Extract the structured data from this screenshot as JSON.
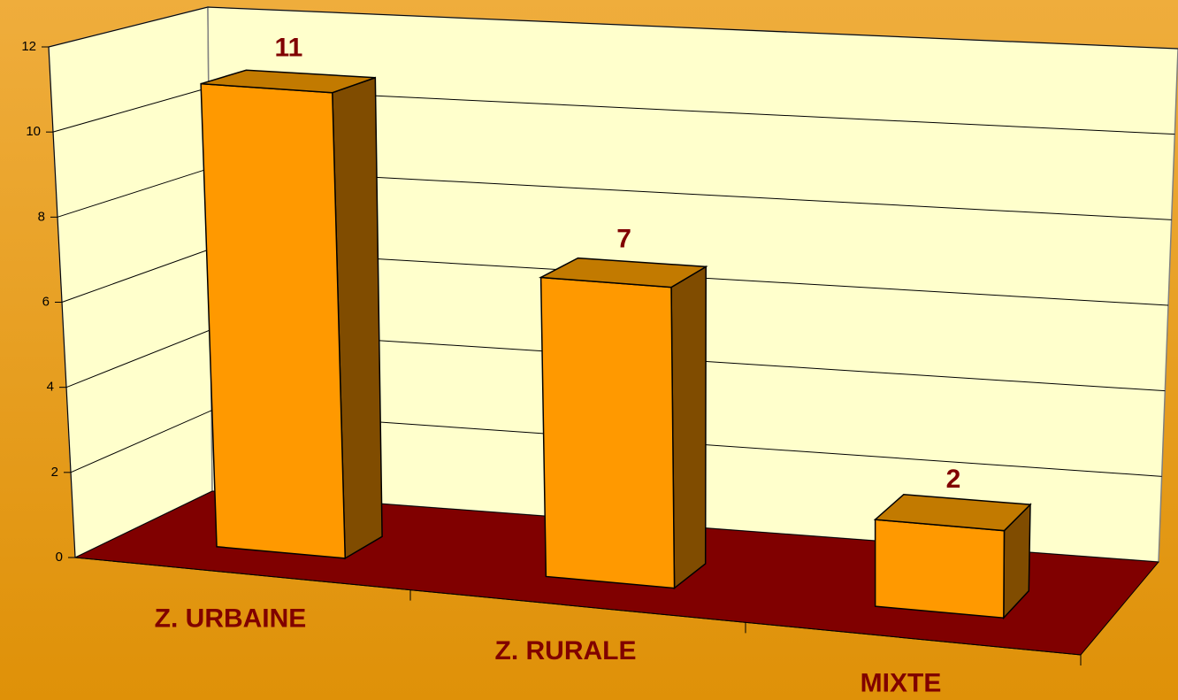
{
  "chart_data": {
    "type": "bar3d",
    "categories": [
      "Z. URBAINE",
      "Z. RURALE",
      "MIXTE"
    ],
    "values": [
      11,
      7,
      2
    ],
    "color": "#ff9900",
    "ylim": [
      0,
      12
    ],
    "yticks": [
      0,
      2,
      4,
      6,
      8,
      10,
      12
    ],
    "grid": true
  }
}
